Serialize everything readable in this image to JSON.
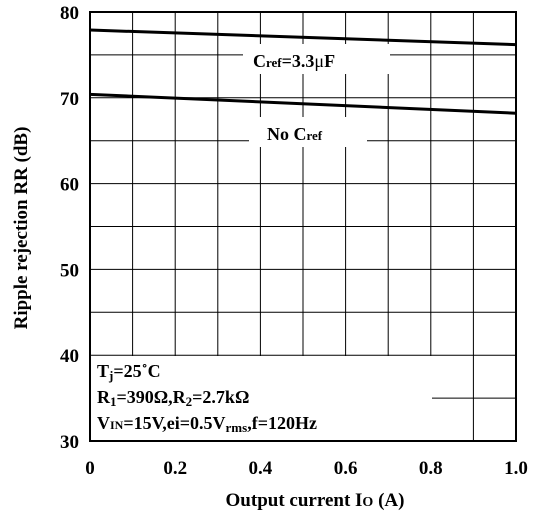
{
  "chart_data": {
    "type": "line",
    "title": "",
    "xlabel": "Output current I",
    "xlabel_sub": "O",
    "xlabel_unit": "(A)",
    "ylabel": "Ripple rejection RR (dB)",
    "xlim": [
      0,
      1.0
    ],
    "ylim": [
      30,
      80
    ],
    "x_ticks": [
      0,
      0.2,
      0.4,
      0.6,
      0.8,
      1.0
    ],
    "x_tick_labels": [
      "0",
      "0.2",
      "0.4",
      "0.6",
      "0.8",
      "1.0"
    ],
    "y_ticks": [
      30,
      40,
      50,
      60,
      70,
      80
    ],
    "y_tick_labels": [
      "30",
      "40",
      "50",
      "60",
      "70",
      "80"
    ],
    "grid": true,
    "series": [
      {
        "name": "Cref=3.3μF",
        "label_parts": [
          "C",
          "ref",
          "=3.3",
          "μ",
          "F"
        ],
        "x": [
          0,
          1.0
        ],
        "y": [
          77.9,
          76.2
        ]
      },
      {
        "name": "No Cref",
        "label_parts": [
          "No C",
          "ref"
        ],
        "x": [
          0,
          1.0
        ],
        "y": [
          70.4,
          68.2
        ]
      }
    ],
    "conditions": {
      "line1": [
        "T",
        "j",
        "=25˚C"
      ],
      "line2": [
        "R",
        "1",
        "=390Ω,R",
        "2",
        "=2.7kΩ"
      ],
      "line3": [
        "V",
        "IN",
        "=15V,ei=0.5V",
        "rms",
        ",f=120Hz"
      ]
    }
  }
}
